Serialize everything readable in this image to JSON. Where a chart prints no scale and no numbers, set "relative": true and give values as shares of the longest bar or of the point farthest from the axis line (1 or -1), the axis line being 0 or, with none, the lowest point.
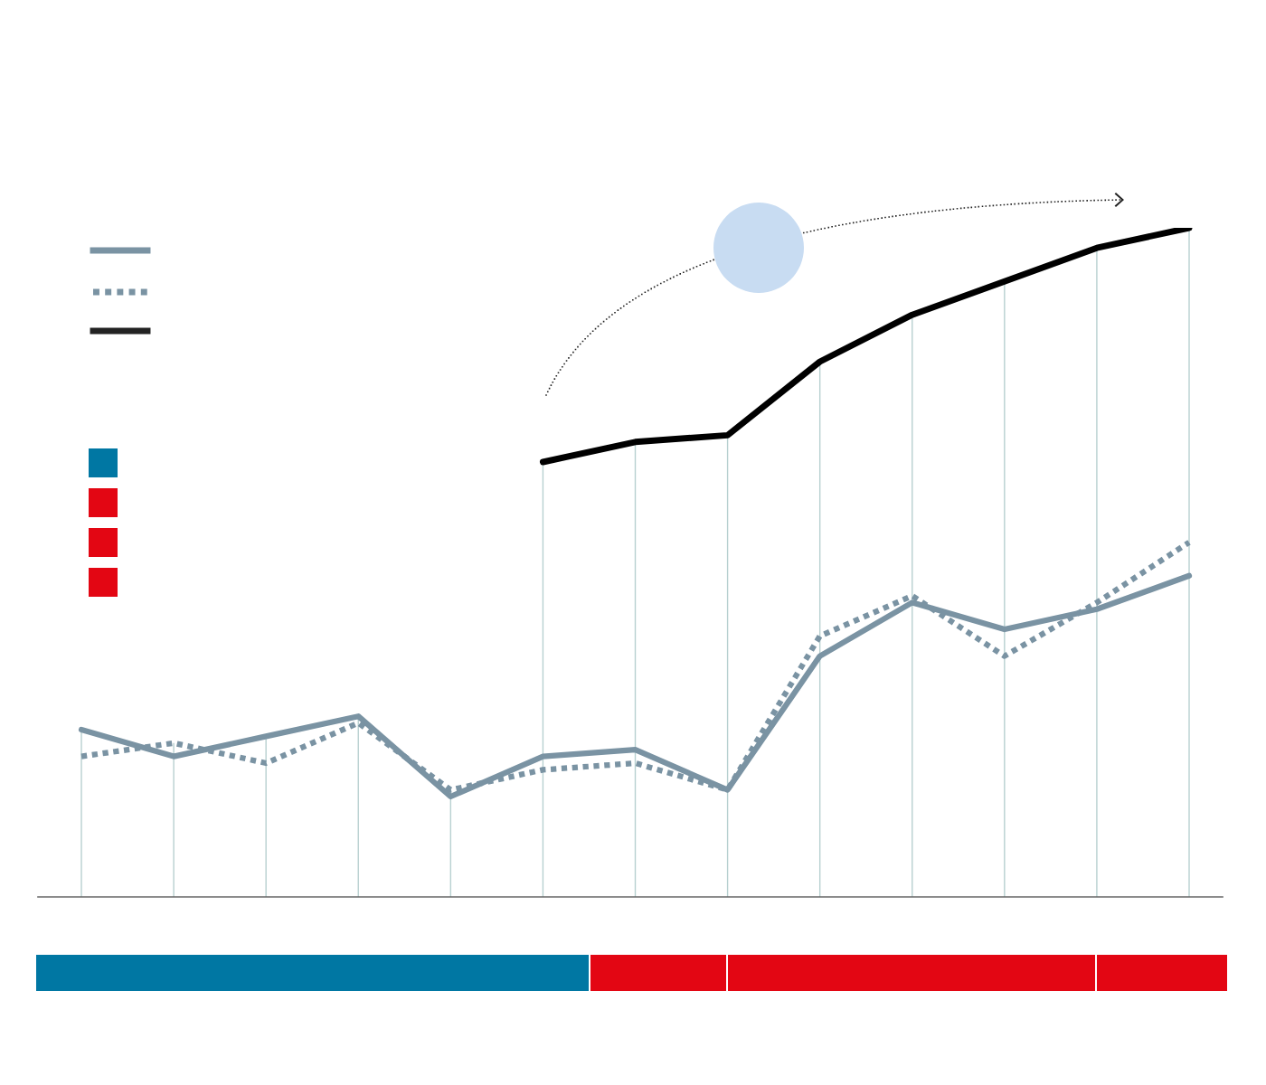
{
  "chart_data": {
    "type": "line",
    "relative": true,
    "categories": [
      null,
      null,
      null,
      null,
      null,
      null,
      null,
      null,
      null,
      null,
      null,
      null,
      null
    ],
    "grid": "x",
    "legend": false,
    "series": [
      {
        "color": "#7a93a3",
        "line_style": "solid",
        "values": [
          0.25,
          0.21,
          0.24,
          0.27,
          0.15,
          0.21,
          0.22,
          0.16,
          0.36,
          0.44,
          0.4,
          0.43,
          0.48
        ]
      },
      {
        "color": "#7a93a3",
        "line_style": "dotted",
        "values": [
          0.21,
          0.23,
          0.2,
          0.26,
          0.16,
          0.19,
          0.2,
          0.16,
          0.39,
          0.45,
          0.36,
          0.44,
          0.53
        ]
      },
      {
        "color": "#000000",
        "line_style": "solid",
        "values": [
          null,
          null,
          null,
          null,
          null,
          0.65,
          0.68,
          0.69,
          0.8,
          0.87,
          0.92,
          0.97,
          1
        ]
      }
    ]
  }
}
